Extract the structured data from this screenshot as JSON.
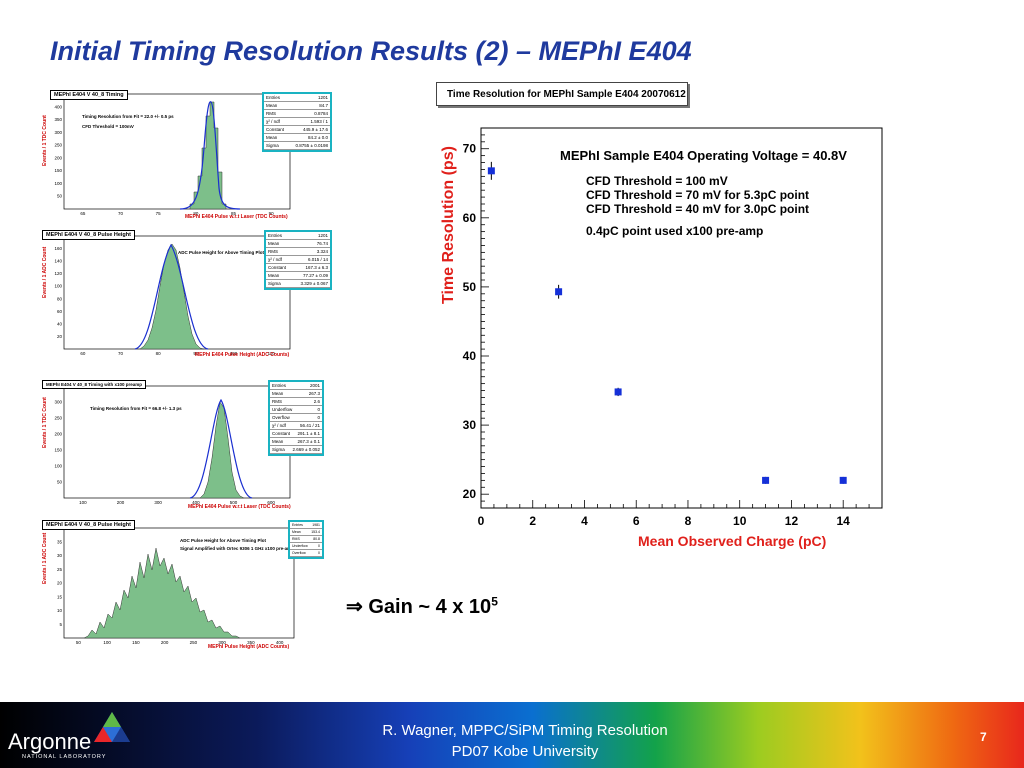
{
  "slide": {
    "title": "Initial Timing Resolution Results (2) – MEPhI E404",
    "gain_arrow": "⇒",
    "gain_text": "Gain ~ 4 x 10",
    "gain_exponent": "5"
  },
  "small_plots": [
    {
      "title": "MEPhI E404 V 40_8 Timing",
      "ylabel": "Events / 1 TDC Count",
      "xlabel": "MEPhI E404 Pulse w.r.t Laser (TDC Counts)",
      "notes": [
        "Timing Resolution from Fit = 22.0 +/- 0.5 ps",
        "CFD Threshold = 100mV"
      ],
      "yticks": [
        "50",
        "100",
        "150",
        "200",
        "250",
        "300",
        "350",
        "400"
      ],
      "xticks": [
        "65",
        "70",
        "75",
        "80",
        "85",
        "90"
      ],
      "stats": [
        [
          "Entries",
          "1201"
        ],
        [
          "Mean",
          "84.7"
        ],
        [
          "RMS",
          "0.8784"
        ],
        [
          "χ² / ndf",
          "1.593 / 1"
        ],
        [
          "Constant",
          "445.9 ± 17.6"
        ],
        [
          "Mean",
          "84.2 ± 0.0"
        ],
        [
          "Sigma",
          "0.8755 ± 0.0198"
        ]
      ]
    },
    {
      "title": "MEPhI E404 V 40_8 Pulse Height",
      "ylabel": "Events / 1 ADC Count",
      "xlabel": "MEPhI E404 Pulse Height (ADC Counts)",
      "notes": [
        "ADC Pulse Height for Above Timing Plot"
      ],
      "yticks": [
        "20",
        "40",
        "60",
        "80",
        "100",
        "120",
        "140",
        "160"
      ],
      "xticks": [
        "60",
        "70",
        "80",
        "90",
        "100",
        "110"
      ],
      "stats": [
        [
          "Entries",
          "1201"
        ],
        [
          "Mean",
          "76.74"
        ],
        [
          "RMS",
          "3.324"
        ],
        [
          "χ² / ndf",
          "6.015 / 14"
        ],
        [
          "Constant",
          "167.3 ± 6.3"
        ],
        [
          "Mean",
          "77.27 ± 0.09"
        ],
        [
          "Sigma",
          "3.329 ± 0.067"
        ]
      ]
    },
    {
      "title": "MEPhI E404 V 40_8 Timing with x100 preamp",
      "ylabel": "Events / 1 TDC Count",
      "xlabel": "MEPhI E404 Pulse w.r.t Laser (TDC Counts)",
      "notes": [
        "Timing Resolution from Fit = 66.8 +/- 1.3 ps"
      ],
      "yticks": [
        "50",
        "100",
        "150",
        "200",
        "250",
        "300"
      ],
      "xticks": [
        "100",
        "200",
        "300",
        "400",
        "500",
        "600"
      ],
      "stats": [
        [
          "Entries",
          "2001"
        ],
        [
          "Mean",
          "267.3"
        ],
        [
          "RMS",
          "2.6"
        ],
        [
          "Underflow",
          "0"
        ],
        [
          "Overflow",
          "0"
        ],
        [
          "χ² / ndf",
          "56.41 / 21"
        ],
        [
          "Constant",
          "291.1 ± 8.1"
        ],
        [
          "Mean",
          "267.3 ± 0.1"
        ],
        [
          "Sigma",
          "2.669 ± 0.052"
        ]
      ]
    },
    {
      "title": "MEPhI E404 V 40_8 Pulse Height",
      "ylabel": "Events / 1 ADC Count",
      "xlabel": "MEPhI Pulse Height (ADC Counts)",
      "notes": [
        "ADC Pulse Height for Above Timing Plot",
        "Signal Amplified with Ortec 9306 1 GHz x100 pre-amp"
      ],
      "yticks": [
        "5",
        "10",
        "15",
        "20",
        "25",
        "30",
        "35"
      ],
      "xticks": [
        "50",
        "100",
        "150",
        "200",
        "250",
        "300",
        "350",
        "400"
      ],
      "stats": [
        [
          "Entries",
          "1981"
        ],
        [
          "Mean",
          "153.4"
        ],
        [
          "RMS",
          "80.8"
        ],
        [
          "Underflow",
          "0"
        ],
        [
          "Overflow",
          "0"
        ]
      ]
    }
  ],
  "main_chart": {
    "title_box": "Time Resolution for MEPhI Sample E404  20070612",
    "annotations": [
      "MEPhI Sample E404 Operating Voltage = 40.8V",
      "CFD Threshold = 100 mV",
      "CFD Threshold = 70 mV for 5.3pC point",
      "CFD Threshold = 40 mV for 3.0pC point",
      "0.4pC point used x100 pre-amp"
    ],
    "ylabel": "Time Resolution (ps)",
    "xlabel": "Mean Observed Charge  (pC)",
    "xticks": [
      "0",
      "2",
      "4",
      "6",
      "8",
      "10",
      "12",
      "14"
    ],
    "yticks": [
      "20",
      "30",
      "40",
      "50",
      "60",
      "70"
    ],
    "marker_color": "#1530d8",
    "axis_title_color": "#e0201b"
  },
  "chart_data": {
    "type": "scatter",
    "title": "Time Resolution for MEPhI Sample E404  20070612",
    "xlabel": "Mean Observed Charge  (pC)",
    "ylabel": "Time Resolution (ps)",
    "xlim": [
      0,
      15.5
    ],
    "ylim": [
      18,
      73
    ],
    "grid": false,
    "series": [
      {
        "x": [
          0.4,
          3.0,
          5.3,
          11.0,
          14.0
        ],
        "y": [
          66.8,
          49.3,
          34.8,
          22.0,
          22.0
        ],
        "yerr": [
          1.3,
          1.0,
          0.6,
          0.5,
          0.5
        ]
      }
    ]
  },
  "footer": {
    "logo_name": "Argonne",
    "logo_sub": "NATIONAL LABORATORY",
    "line1": "R. Wagner, MPPC/SiPM Timing Resolution",
    "line2": "PD07 Kobe University",
    "page_number": "7"
  }
}
